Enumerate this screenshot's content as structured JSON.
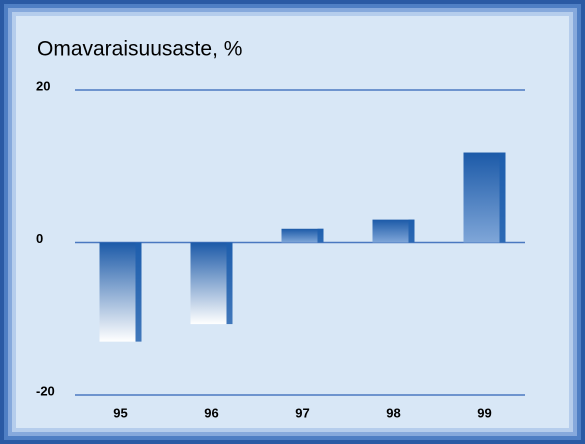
{
  "chart_data": {
    "type": "bar",
    "title": "Omavaraisuusaste, %",
    "categories": [
      "95",
      "96",
      "97",
      "98",
      "99"
    ],
    "values": [
      -13,
      -10.7,
      1.8,
      3,
      11.8
    ],
    "color": "#1f5fae",
    "ylim": [
      -20,
      20
    ],
    "yticks": [
      -20,
      0,
      20
    ],
    "grid": true
  }
}
